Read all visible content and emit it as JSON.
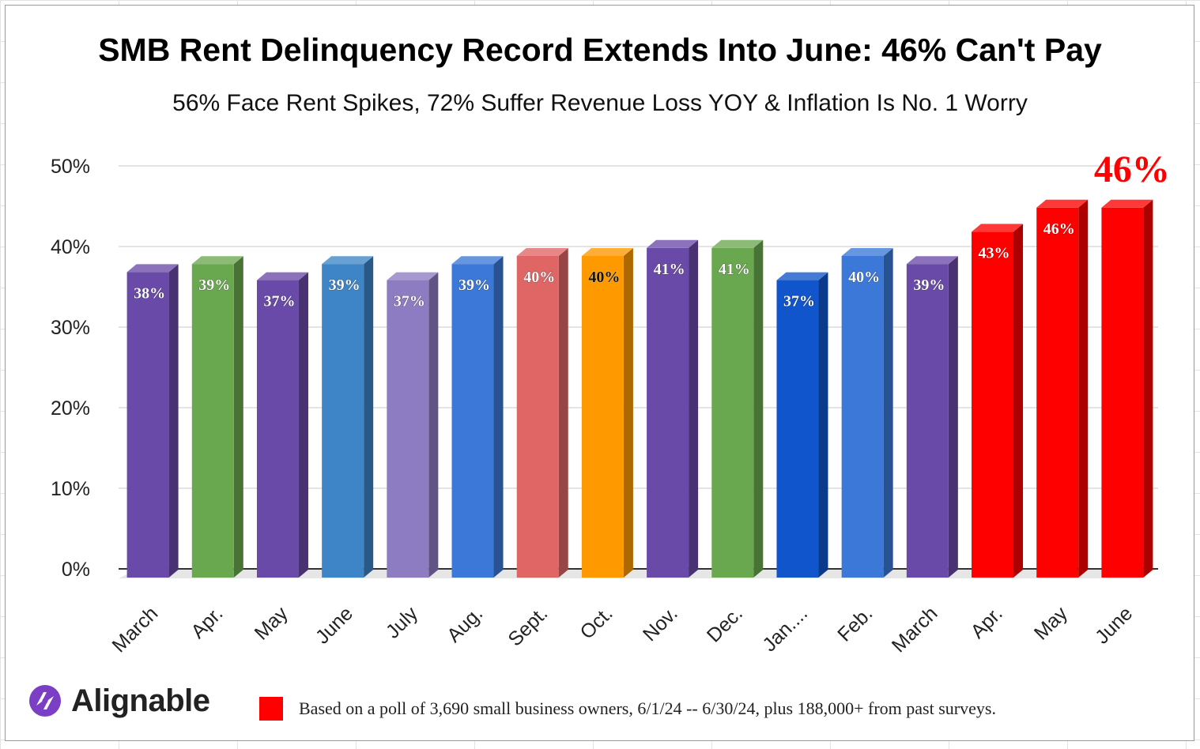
{
  "chart_data": {
    "type": "bar",
    "title": "SMB Rent Delinquency Record Extends Into June: 46% Can't Pay",
    "subtitle": "56% Face Rent Spikes, 72% Suffer Revenue Loss YOY & Inflation Is No. 1 Worry",
    "categories": [
      "March",
      "Apr.",
      "May",
      "June",
      "July",
      "Aug.",
      "Sept.",
      "Oct.",
      "Nov.",
      "Dec.",
      "Jan....",
      "Feb.",
      "March",
      "Apr.",
      "May",
      "June"
    ],
    "values": [
      38,
      39,
      37,
      39,
      37,
      39,
      40,
      40,
      41,
      41,
      37,
      40,
      39,
      43,
      46,
      46
    ],
    "value_labels": [
      "38%",
      "39%",
      "37%",
      "39%",
      "37%",
      "39%",
      "40%",
      "40%",
      "41%",
      "41%",
      "37%",
      "40%",
      "39%",
      "43%",
      "46%",
      ""
    ],
    "bar_colors": [
      "#6a4aa8",
      "#6aa84f",
      "#6a4aa8",
      "#3d85c6",
      "#8e7cc3",
      "#3c78d8",
      "#e06666",
      "#ff9900",
      "#6a4aa8",
      "#6aa84f",
      "#1155cc",
      "#3c78d8",
      "#6a4aa8",
      "#ff0000",
      "#ff0000",
      "#ff0000"
    ],
    "callout": "46%",
    "callout_color": "#ff0000",
    "ylim": [
      0,
      50
    ],
    "yticks": [
      0,
      10,
      20,
      30,
      40,
      50
    ],
    "ytick_labels": [
      "0%",
      "10%",
      "20%",
      "30%",
      "40%",
      "50%"
    ],
    "grid": true,
    "style": "3d-bars"
  },
  "branding": {
    "logo_text": "Alignable",
    "logo_icon": "alignable-logo-icon"
  },
  "footnote": {
    "text": "Based on a poll of 3,690 small business owners, 6/1/24 -- 6/30/24, plus 188,000+ from past surveys.",
    "swatch_color": "#ff0000"
  }
}
